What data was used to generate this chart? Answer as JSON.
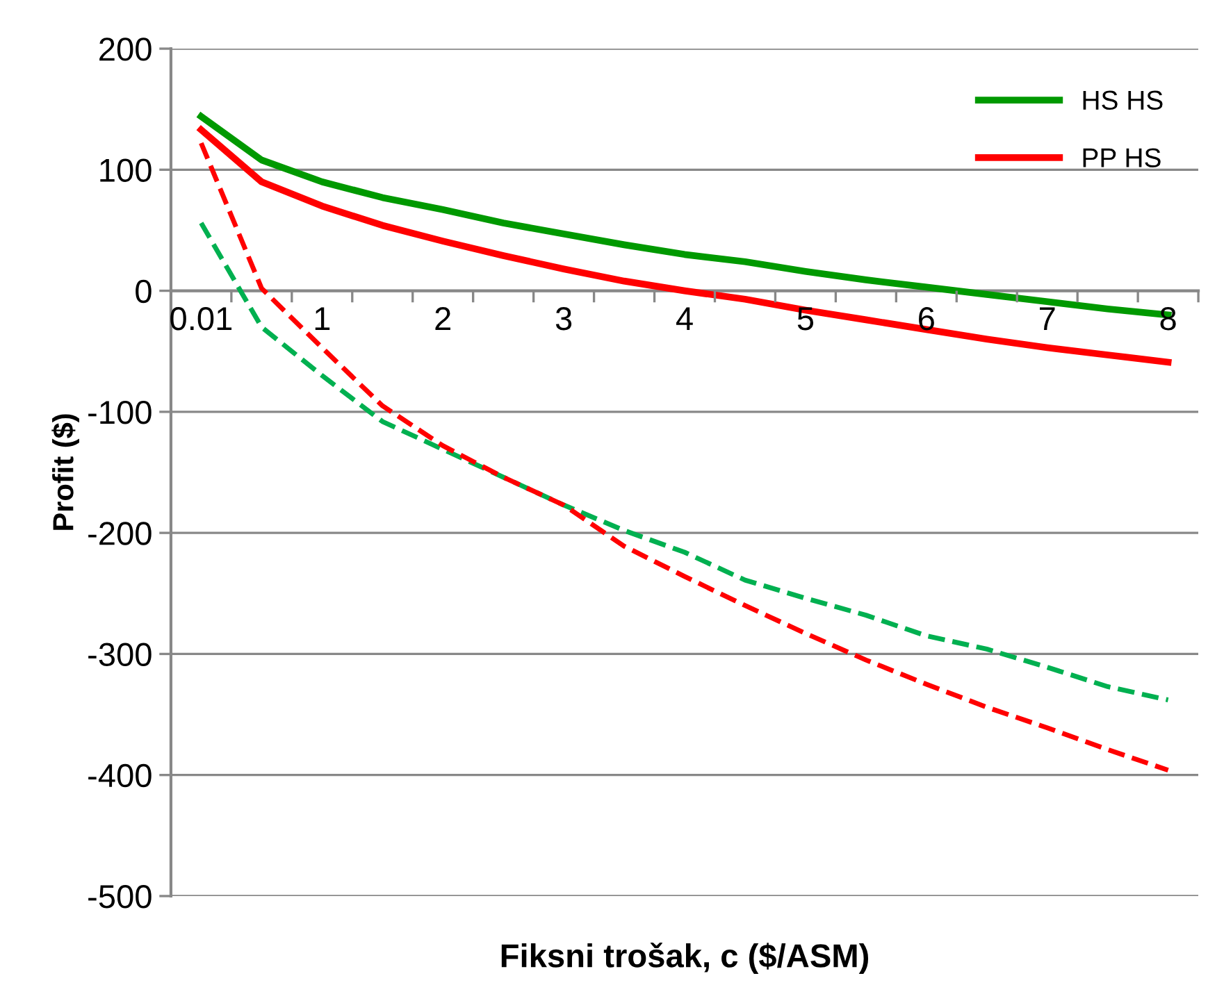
{
  "chart_data": {
    "type": "line",
    "xlabel": "Fiksni trošak, c ($/ASM)",
    "ylabel": "Profit ($)",
    "categories": [
      "0.01",
      null,
      "1",
      null,
      "2",
      null,
      "3",
      null,
      "4",
      null,
      "5",
      null,
      "6",
      null,
      "7",
      null,
      "8"
    ],
    "series": [
      {
        "name": "HS HS",
        "color": "#009900",
        "line_style": "solid",
        "values": [
          144,
          108,
          90,
          77,
          67,
          56,
          47,
          38,
          30,
          24,
          16,
          9,
          3,
          -3,
          -9,
          -15,
          -20
        ]
      },
      {
        "name": "PP HS",
        "color": "#ff0000",
        "line_style": "solid",
        "values": [
          133,
          90,
          70,
          54,
          41,
          29,
          18,
          8,
          0,
          -7,
          -16,
          -24,
          -32,
          -40,
          -47,
          -53,
          -59
        ]
      },
      {
        "color": "#00b050",
        "line_style": "dashed",
        "values": [
          56,
          -30,
          -70,
          -108,
          -131,
          -154,
          -177,
          -198,
          -216,
          -239,
          -254,
          -268,
          -285,
          -296,
          -311,
          -327,
          -338
        ]
      },
      {
        "color": "#ff0000",
        "line_style": "dashed",
        "values": [
          122,
          2,
          -47,
          -95,
          -128,
          -154,
          -177,
          -211,
          -236,
          -260,
          -283,
          -305,
          -325,
          -344,
          -361,
          -379,
          -396
        ]
      }
    ],
    "ylim": [
      -500,
      200
    ],
    "yticks": [
      -500,
      -400,
      -300,
      -200,
      -100,
      0,
      100,
      200
    ],
    "grid": "y",
    "legend": "top right",
    "marker": "none"
  }
}
